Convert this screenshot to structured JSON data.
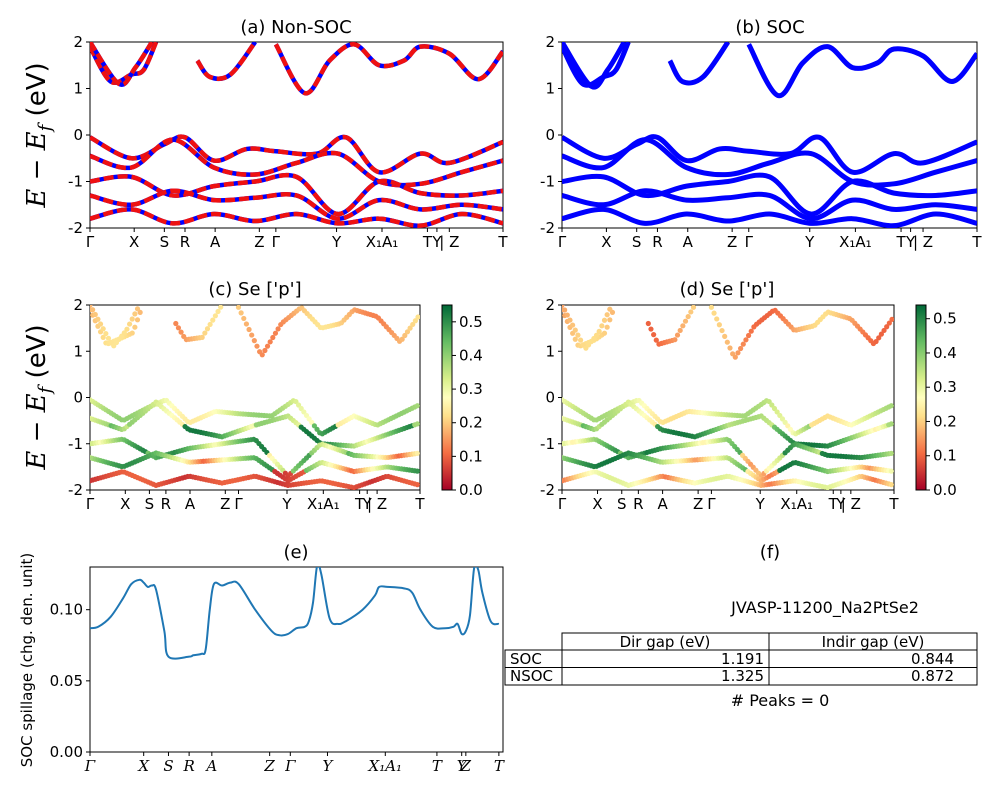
{
  "colors": {
    "red": "#ee1111",
    "blue": "#0000ff",
    "line": "#1f77b4",
    "black": "#000000"
  },
  "chart_data": [
    {
      "id": "a",
      "type": "line",
      "title": "(a) Non-SOC",
      "ylabel": "E − E_f (eV)",
      "ylim": [
        -2,
        2
      ],
      "yticks": [
        "-2",
        "-1",
        "0",
        "1",
        "2"
      ],
      "kpoints": [
        {
          "label": "Γ",
          "x": 0
        },
        {
          "label": "X",
          "x": 0.107
        },
        {
          "label": "S",
          "x": 0.18
        },
        {
          "label": "R",
          "x": 0.23
        },
        {
          "label": "A",
          "x": 0.303
        },
        {
          "label": "Z",
          "x": 0.41
        },
        {
          "label": "Γ",
          "x": 0.45
        },
        {
          "label": "Y",
          "x": 0.597
        },
        {
          "label": "X₁A₁",
          "x": 0.707
        },
        {
          "label": "T",
          "x": 0.817
        },
        {
          "label": "Y",
          "x": 0.84
        },
        {
          "label": "| Z",
          "x": 0.87
        },
        {
          "label": "T",
          "x": 1.0
        }
      ],
      "series": [
        {
          "name": "Non-SOC bands (dashed red/blue)",
          "style": "dashed-red-blue",
          "bands": [
            [
              [
                0.0,
                1.9
              ],
              [
                0.05,
                1.15
              ],
              [
                0.1,
                1.3
              ],
              [
                0.13,
                1.4
              ],
              [
                0.16,
                2.0
              ]
            ],
            [
              [
                0.0,
                2.0
              ],
              [
                0.07,
                1.1
              ],
              [
                0.11,
                1.45
              ],
              [
                0.15,
                2.0
              ]
            ],
            [
              [
                0.26,
                1.6
              ],
              [
                0.29,
                1.25
              ],
              [
                0.34,
                1.3
              ],
              [
                0.4,
                2.0
              ]
            ],
            [
              [
                0.45,
                1.95
              ],
              [
                0.52,
                0.9
              ],
              [
                0.58,
                1.6
              ],
              [
                0.64,
                1.95
              ],
              [
                0.7,
                1.5
              ],
              [
                0.76,
                1.6
              ],
              [
                0.8,
                1.9
              ],
              [
                0.87,
                1.75
              ],
              [
                0.94,
                1.2
              ],
              [
                1.0,
                1.8
              ]
            ],
            [
              [
                0.0,
                -0.05
              ],
              [
                0.1,
                -0.5
              ],
              [
                0.18,
                -0.2
              ],
              [
                0.23,
                -0.05
              ],
              [
                0.3,
                -0.55
              ],
              [
                0.38,
                -0.3
              ],
              [
                0.45,
                -0.35
              ],
              [
                0.55,
                -0.4
              ],
              [
                0.62,
                -0.05
              ],
              [
                0.7,
                -0.8
              ],
              [
                0.8,
                -0.4
              ],
              [
                0.87,
                -0.6
              ],
              [
                1.0,
                -0.15
              ]
            ],
            [
              [
                0.0,
                -0.45
              ],
              [
                0.1,
                -0.7
              ],
              [
                0.2,
                -0.1
              ],
              [
                0.3,
                -0.7
              ],
              [
                0.4,
                -0.85
              ],
              [
                0.5,
                -0.6
              ],
              [
                0.6,
                -0.4
              ],
              [
                0.7,
                -1.0
              ],
              [
                0.8,
                -1.05
              ],
              [
                0.9,
                -0.8
              ],
              [
                1.0,
                -0.55
              ]
            ],
            [
              [
                0.0,
                -1.0
              ],
              [
                0.1,
                -0.9
              ],
              [
                0.2,
                -1.3
              ],
              [
                0.3,
                -1.1
              ],
              [
                0.4,
                -1.0
              ],
              [
                0.5,
                -0.9
              ],
              [
                0.6,
                -1.7
              ],
              [
                0.7,
                -1.0
              ],
              [
                0.8,
                -1.25
              ],
              [
                0.9,
                -1.3
              ],
              [
                1.0,
                -1.2
              ]
            ],
            [
              [
                0.0,
                -1.3
              ],
              [
                0.1,
                -1.5
              ],
              [
                0.2,
                -1.2
              ],
              [
                0.3,
                -1.4
              ],
              [
                0.4,
                -1.35
              ],
              [
                0.5,
                -1.3
              ],
              [
                0.6,
                -1.8
              ],
              [
                0.7,
                -1.4
              ],
              [
                0.8,
                -1.6
              ],
              [
                0.9,
                -1.5
              ],
              [
                1.0,
                -1.6
              ]
            ],
            [
              [
                0.0,
                -1.8
              ],
              [
                0.1,
                -1.6
              ],
              [
                0.2,
                -1.9
              ],
              [
                0.3,
                -1.7
              ],
              [
                0.4,
                -1.85
              ],
              [
                0.5,
                -1.7
              ],
              [
                0.6,
                -1.9
              ],
              [
                0.7,
                -1.8
              ],
              [
                0.8,
                -1.95
              ],
              [
                0.9,
                -1.7
              ],
              [
                1.0,
                -1.9
              ]
            ]
          ]
        }
      ]
    },
    {
      "id": "b",
      "type": "line",
      "title": "(b) SOC",
      "ylim": [
        -2,
        2
      ],
      "yticks": [
        "-2",
        "-1",
        "0",
        "1",
        "2"
      ],
      "kpoints": "same as (a)",
      "series": [
        {
          "name": "SOC bands (blue)",
          "style": "solid-blue",
          "bands": [
            [
              [
                0.0,
                1.9
              ],
              [
                0.05,
                1.1
              ],
              [
                0.1,
                1.25
              ],
              [
                0.13,
                1.4
              ],
              [
                0.16,
                2.0
              ]
            ],
            [
              [
                0.0,
                2.0
              ],
              [
                0.07,
                1.05
              ],
              [
                0.11,
                1.4
              ],
              [
                0.15,
                2.0
              ]
            ],
            [
              [
                0.26,
                1.6
              ],
              [
                0.29,
                1.15
              ],
              [
                0.34,
                1.25
              ],
              [
                0.4,
                2.0
              ]
            ],
            [
              [
                0.45,
                1.95
              ],
              [
                0.52,
                0.85
              ],
              [
                0.58,
                1.55
              ],
              [
                0.64,
                1.9
              ],
              [
                0.7,
                1.45
              ],
              [
                0.76,
                1.55
              ],
              [
                0.8,
                1.85
              ],
              [
                0.87,
                1.7
              ],
              [
                0.94,
                1.15
              ],
              [
                1.0,
                1.75
              ]
            ],
            [
              [
                0.0,
                -0.05
              ],
              [
                0.1,
                -0.5
              ],
              [
                0.18,
                -0.2
              ],
              [
                0.23,
                -0.05
              ],
              [
                0.3,
                -0.55
              ],
              [
                0.38,
                -0.3
              ],
              [
                0.45,
                -0.35
              ],
              [
                0.55,
                -0.4
              ],
              [
                0.62,
                -0.05
              ],
              [
                0.7,
                -0.8
              ],
              [
                0.8,
                -0.4
              ],
              [
                0.87,
                -0.6
              ],
              [
                1.0,
                -0.15
              ]
            ],
            [
              [
                0.0,
                -0.45
              ],
              [
                0.1,
                -0.7
              ],
              [
                0.2,
                -0.1
              ],
              [
                0.3,
                -0.7
              ],
              [
                0.4,
                -0.85
              ],
              [
                0.5,
                -0.6
              ],
              [
                0.6,
                -0.4
              ],
              [
                0.7,
                -1.0
              ],
              [
                0.8,
                -1.05
              ],
              [
                0.9,
                -0.8
              ],
              [
                1.0,
                -0.55
              ]
            ],
            [
              [
                0.0,
                -1.0
              ],
              [
                0.1,
                -0.9
              ],
              [
                0.2,
                -1.3
              ],
              [
                0.3,
                -1.1
              ],
              [
                0.4,
                -1.0
              ],
              [
                0.5,
                -0.9
              ],
              [
                0.6,
                -1.7
              ],
              [
                0.7,
                -1.0
              ],
              [
                0.8,
                -1.25
              ],
              [
                0.9,
                -1.3
              ],
              [
                1.0,
                -1.2
              ]
            ],
            [
              [
                0.0,
                -1.3
              ],
              [
                0.1,
                -1.5
              ],
              [
                0.2,
                -1.2
              ],
              [
                0.3,
                -1.4
              ],
              [
                0.4,
                -1.35
              ],
              [
                0.5,
                -1.3
              ],
              [
                0.6,
                -1.8
              ],
              [
                0.7,
                -1.4
              ],
              [
                0.8,
                -1.6
              ],
              [
                0.9,
                -1.5
              ],
              [
                1.0,
                -1.6
              ]
            ],
            [
              [
                0.0,
                -1.8
              ],
              [
                0.1,
                -1.6
              ],
              [
                0.2,
                -1.9
              ],
              [
                0.3,
                -1.7
              ],
              [
                0.4,
                -1.85
              ],
              [
                0.5,
                -1.7
              ],
              [
                0.6,
                -1.9
              ],
              [
                0.7,
                -1.8
              ],
              [
                0.8,
                -1.95
              ],
              [
                0.9,
                -1.7
              ],
              [
                1.0,
                -1.9
              ]
            ]
          ]
        }
      ]
    },
    {
      "id": "c",
      "type": "scatter",
      "title": "(c)  Se ['p']",
      "ylabel": "E − E_f (eV)",
      "ylim": [
        -2,
        2
      ],
      "yticks": [
        "-2",
        "-1",
        "0",
        "1",
        "2"
      ],
      "colorbar": {
        "range": [
          0.0,
          0.55
        ],
        "ticks": [
          "0.0",
          "0.1",
          "0.2",
          "0.3",
          "0.4",
          "0.5"
        ],
        "cmap": "RdYlGn"
      },
      "kpoints": [
        {
          "label": "Γ",
          "x": 0
        },
        {
          "label": "X",
          "x": 0.107
        },
        {
          "label": "S",
          "x": 0.18
        },
        {
          "label": "R",
          "x": 0.23
        },
        {
          "label": "A",
          "x": 0.303
        },
        {
          "label": "Z",
          "x": 0.41
        },
        {
          "label": "Γ",
          "x": 0.45
        },
        {
          "label": "Y",
          "x": 0.597
        },
        {
          "label": "X₁A₁",
          "x": 0.707
        },
        {
          "label": "T",
          "x": 0.817
        },
        {
          "label": "Y",
          "x": 0.84
        },
        {
          "label": "| Z",
          "x": 0.87
        },
        {
          "label": "T",
          "x": 1.0
        }
      ]
    },
    {
      "id": "d",
      "type": "scatter",
      "title": "(d) Se ['p']",
      "ylim": [
        -2,
        2
      ],
      "yticks": [
        "-2",
        "-1",
        "0",
        "1",
        "2"
      ],
      "colorbar": {
        "range": [
          0.0,
          0.54
        ],
        "ticks": [
          "0.0",
          "0.1",
          "0.2",
          "0.3",
          "0.4",
          "0.5"
        ],
        "cmap": "RdYlGn"
      },
      "kpoints": "same as (c)"
    },
    {
      "id": "e",
      "type": "line",
      "title": "(e)",
      "ylabel": "SOC spillage (chg. den. unit)",
      "ylim": [
        0.0,
        0.13
      ],
      "yticks": [
        "0.00",
        "0.05",
        "0.10"
      ],
      "kpoints": [
        {
          "label": "Γ",
          "x": 0
        },
        {
          "label": "X",
          "x": 0.13
        },
        {
          "label": "S",
          "x": 0.19
        },
        {
          "label": "R",
          "x": 0.24
        },
        {
          "label": "A",
          "x": 0.295
        },
        {
          "label": "Z",
          "x": 0.435
        },
        {
          "label": "Γ",
          "x": 0.485
        },
        {
          "label": "Y",
          "x": 0.575
        },
        {
          "label": "X₁A₁",
          "x": 0.715
        },
        {
          "label": "T",
          "x": 0.84
        },
        {
          "label": "Y",
          "x": 0.9
        },
        {
          "label": "Z",
          "x": 0.91
        },
        {
          "label": "T",
          "x": 0.99
        }
      ],
      "x": [
        0.0,
        0.02,
        0.05,
        0.08,
        0.1,
        0.12,
        0.13,
        0.14,
        0.15,
        0.16,
        0.18,
        0.19,
        0.24,
        0.25,
        0.27,
        0.28,
        0.29,
        0.3,
        0.32,
        0.34,
        0.36,
        0.4,
        0.44,
        0.46,
        0.48,
        0.5,
        0.52,
        0.53,
        0.54,
        0.55,
        0.56,
        0.58,
        0.6,
        0.62,
        0.66,
        0.69,
        0.7,
        0.72,
        0.76,
        0.78,
        0.8,
        0.83,
        0.86,
        0.88,
        0.89,
        0.9,
        0.91,
        0.92,
        0.93,
        0.94,
        0.95,
        0.97,
        0.99
      ],
      "values": [
        0.087,
        0.088,
        0.095,
        0.108,
        0.118,
        0.121,
        0.119,
        0.116,
        0.117,
        0.114,
        0.085,
        0.067,
        0.067,
        0.068,
        0.069,
        0.072,
        0.1,
        0.118,
        0.117,
        0.119,
        0.118,
        0.1,
        0.085,
        0.082,
        0.083,
        0.087,
        0.088,
        0.092,
        0.105,
        0.131,
        0.125,
        0.094,
        0.09,
        0.092,
        0.1,
        0.11,
        0.116,
        0.116,
        0.115,
        0.112,
        0.1,
        0.088,
        0.087,
        0.088,
        0.09,
        0.083,
        0.085,
        0.096,
        0.129,
        0.128,
        0.112,
        0.092,
        0.09
      ]
    },
    {
      "id": "f",
      "type": "table",
      "title": "(f)",
      "subtitle": "JVASP-11200_Na2PtSe2",
      "columns": [
        "Dir gap (eV)",
        "Indir gap (eV)"
      ],
      "rows": [
        {
          "label": "SOC",
          "dir": "1.191",
          "indir": "0.844"
        },
        {
          "label": "NSOC",
          "dir": "1.325",
          "indir": "0.872"
        }
      ],
      "footer": "# Peaks = 0"
    }
  ]
}
